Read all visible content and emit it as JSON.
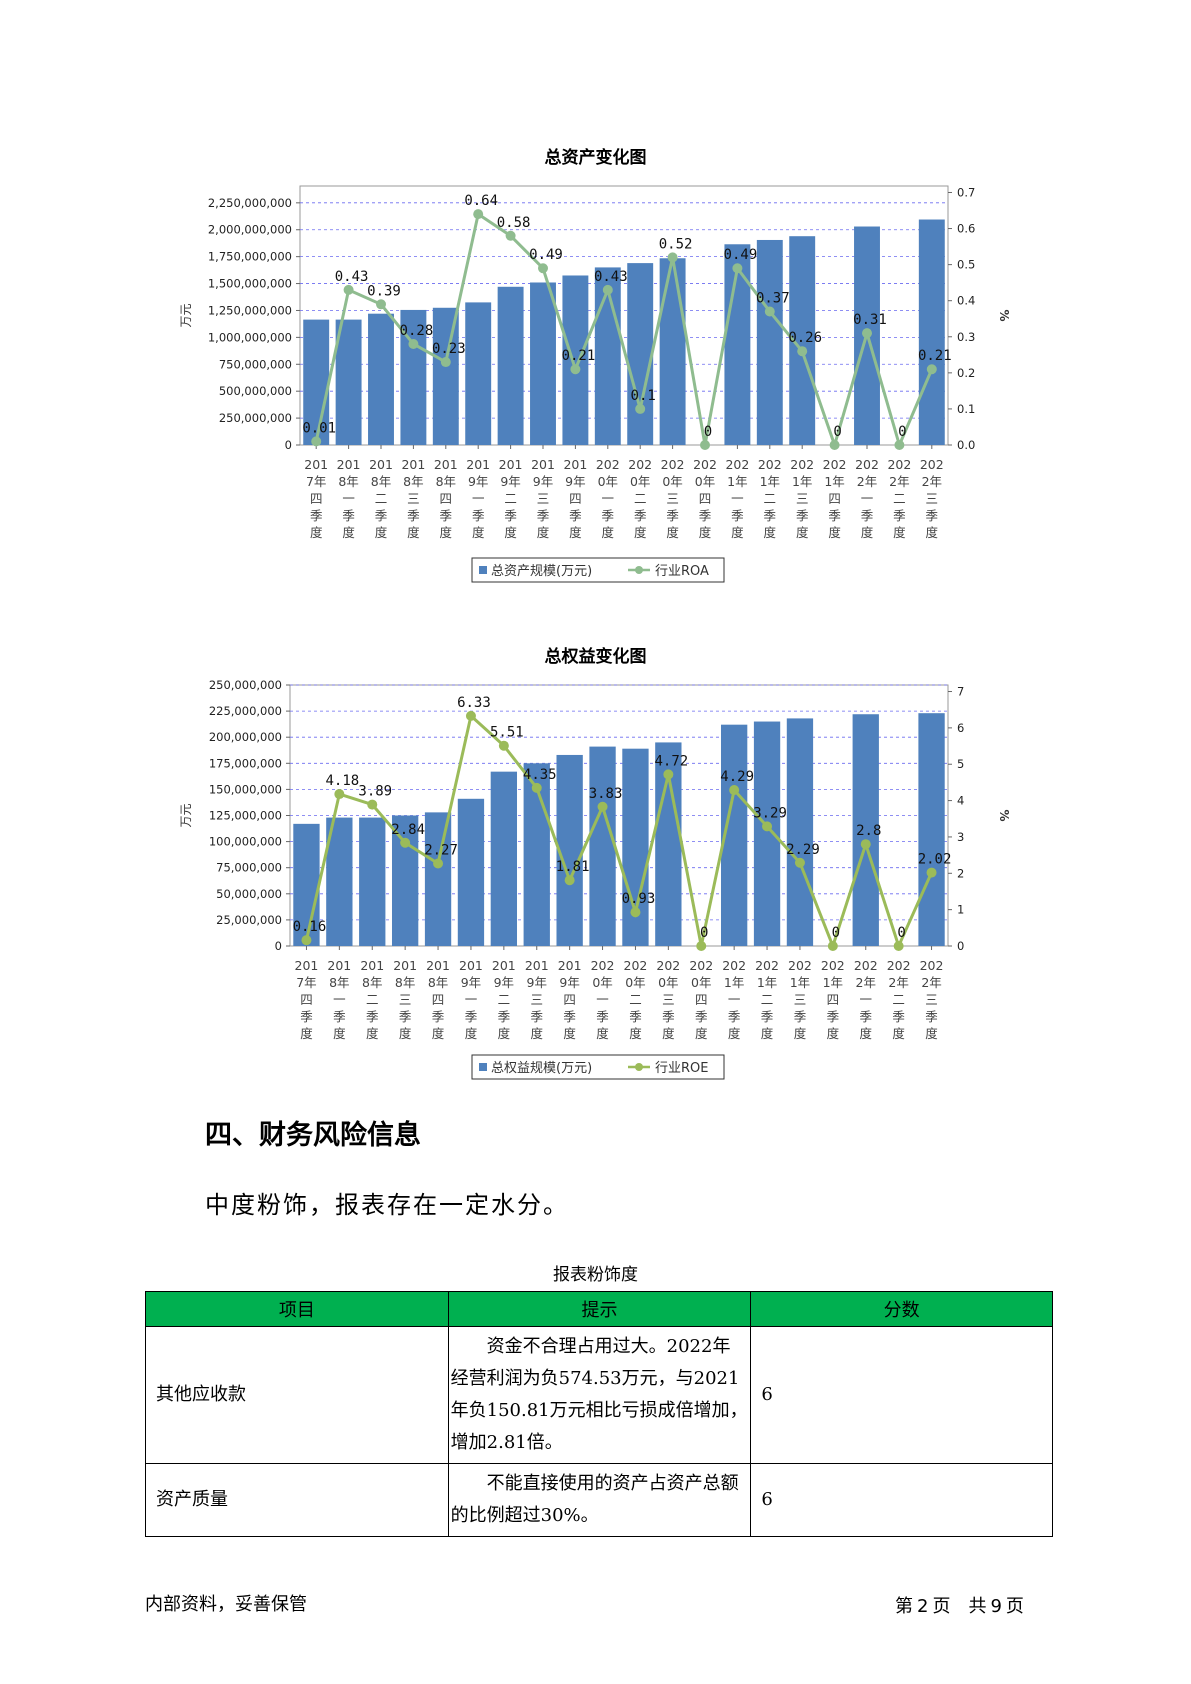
{
  "chart_data": [
    {
      "type": "bar",
      "title": "总资产变化图",
      "ylabel": "万元",
      "y2label": "%",
      "categories": [
        "2017年四季度",
        "2018年一季度",
        "2018年二季度",
        "2018年三季度",
        "2018年四季度",
        "2019年一季度",
        "2019年二季度",
        "2019年三季度",
        "2019年四季度",
        "2020年一季度",
        "2020年二季度",
        "2020年三季度",
        "2020年四季度",
        "2021年一季度",
        "2021年二季度",
        "2021年三季度",
        "2021年四季度",
        "2022年一季度",
        "2022年二季度",
        "2022年三季度"
      ],
      "category_lines": [
        [
          "201",
          "7年",
          "四",
          "季",
          "度"
        ],
        [
          "201",
          "8年",
          "一",
          "季",
          "度"
        ],
        [
          "201",
          "8年",
          "二",
          "季",
          "度"
        ],
        [
          "201",
          "8年",
          "三",
          "季",
          "度"
        ],
        [
          "201",
          "8年",
          "四",
          "季",
          "度"
        ],
        [
          "201",
          "9年",
          "一",
          "季",
          "度"
        ],
        [
          "201",
          "9年",
          "二",
          "季",
          "度"
        ],
        [
          "201",
          "9年",
          "三",
          "季",
          "度"
        ],
        [
          "201",
          "9年",
          "四",
          "季",
          "度"
        ],
        [
          "202",
          "0年",
          "一",
          "季",
          "度"
        ],
        [
          "202",
          "0年",
          "二",
          "季",
          "度"
        ],
        [
          "202",
          "0年",
          "三",
          "季",
          "度"
        ],
        [
          "202",
          "0年",
          "四",
          "季",
          "度"
        ],
        [
          "202",
          "1年",
          "一",
          "季",
          "度"
        ],
        [
          "202",
          "1年",
          "二",
          "季",
          "度"
        ],
        [
          "202",
          "1年",
          "三",
          "季",
          "度"
        ],
        [
          "202",
          "1年",
          "四",
          "季",
          "度"
        ],
        [
          "202",
          "2年",
          "一",
          "季",
          "度"
        ],
        [
          "202",
          "2年",
          "二",
          "季",
          "度"
        ],
        [
          "202",
          "2年",
          "三",
          "季",
          "度"
        ]
      ],
      "series": [
        {
          "name": "总资产规模(万元)",
          "kind": "bar",
          "axis": "left",
          "color": "#4f81bd",
          "values": [
            1165000000,
            1165000000,
            1220000000,
            1255000000,
            1275000000,
            1325000000,
            1470000000,
            1510000000,
            1575000000,
            1650000000,
            1690000000,
            1735000000,
            null,
            1865000000,
            1905000000,
            1940000000,
            null,
            2030000000,
            null,
            2095000000
          ]
        },
        {
          "name": "行业ROA",
          "kind": "line",
          "axis": "right",
          "color": "#8fbc8f",
          "values": [
            0.01,
            0.43,
            0.39,
            0.28,
            0.23,
            0.64,
            0.58,
            0.49,
            0.21,
            0.43,
            0.1,
            0.52,
            0,
            0.49,
            0.37,
            0.26,
            0,
            0.31,
            0,
            0.21
          ],
          "labels": [
            "0.01",
            "0.43",
            "0.39",
            "0.28",
            "0.23",
            "0.64",
            "0.58",
            "0.49",
            "0.21",
            "0.43",
            "0.1",
            "0.52",
            "0",
            "0.49",
            "0.37",
            "0.26",
            "0",
            "0.31",
            "0",
            "0.21"
          ]
        }
      ],
      "ylim": [
        0,
        2250000000
      ],
      "yticks": [
        "0",
        "250,000,000",
        "500,000,000",
        "750,000,000",
        "1,000,000,000",
        "1,250,000,000",
        "1,500,000,000",
        "1,750,000,000",
        "2,000,000,000",
        "2,250,000,000"
      ],
      "y2lim": [
        0,
        0.7
      ],
      "y2ticks": [
        "0.0",
        "0.1",
        "0.2",
        "0.3",
        "0.4",
        "0.5",
        "0.6",
        "0.7"
      ],
      "legend": "bottom",
      "grid": true
    },
    {
      "type": "bar",
      "title": "总权益变化图",
      "ylabel": "万元",
      "y2label": "%",
      "categories": [
        "2017年四季度",
        "2018年一季度",
        "2018年二季度",
        "2018年三季度",
        "2018年四季度",
        "2019年一季度",
        "2019年二季度",
        "2019年三季度",
        "2019年四季度",
        "2020年一季度",
        "2020年二季度",
        "2020年三季度",
        "2020年四季度",
        "2021年一季度",
        "2021年二季度",
        "2021年三季度",
        "2021年四季度",
        "2022年一季度",
        "2022年二季度",
        "2022年三季度"
      ],
      "category_lines": [
        [
          "201",
          "7年",
          "四",
          "季",
          "度"
        ],
        [
          "201",
          "8年",
          "一",
          "季",
          "度"
        ],
        [
          "201",
          "8年",
          "二",
          "季",
          "度"
        ],
        [
          "201",
          "8年",
          "三",
          "季",
          "度"
        ],
        [
          "201",
          "8年",
          "四",
          "季",
          "度"
        ],
        [
          "201",
          "9年",
          "一",
          "季",
          "度"
        ],
        [
          "201",
          "9年",
          "二",
          "季",
          "度"
        ],
        [
          "201",
          "9年",
          "三",
          "季",
          "度"
        ],
        [
          "201",
          "9年",
          "四",
          "季",
          "度"
        ],
        [
          "202",
          "0年",
          "一",
          "季",
          "度"
        ],
        [
          "202",
          "0年",
          "二",
          "季",
          "度"
        ],
        [
          "202",
          "0年",
          "三",
          "季",
          "度"
        ],
        [
          "202",
          "0年",
          "四",
          "季",
          "度"
        ],
        [
          "202",
          "1年",
          "一",
          "季",
          "度"
        ],
        [
          "202",
          "1年",
          "二",
          "季",
          "度"
        ],
        [
          "202",
          "1年",
          "三",
          "季",
          "度"
        ],
        [
          "202",
          "1年",
          "四",
          "季",
          "度"
        ],
        [
          "202",
          "2年",
          "一",
          "季",
          "度"
        ],
        [
          "202",
          "2年",
          "二",
          "季",
          "度"
        ],
        [
          "202",
          "2年",
          "三",
          "季",
          "度"
        ]
      ],
      "series": [
        {
          "name": "总权益规模(万元)",
          "kind": "bar",
          "axis": "left",
          "color": "#4f81bd",
          "values": [
            117000000,
            123000000,
            123000000,
            125000000,
            128000000,
            141000000,
            167000000,
            175000000,
            183000000,
            191000000,
            189000000,
            195000000,
            null,
            212000000,
            215000000,
            218000000,
            null,
            222000000,
            null,
            223000000
          ]
        },
        {
          "name": "行业ROE",
          "kind": "line",
          "axis": "right",
          "color": "#9bbb59",
          "values": [
            0.16,
            4.18,
            3.89,
            2.84,
            2.27,
            6.33,
            5.51,
            4.35,
            1.81,
            3.83,
            0.93,
            4.72,
            0,
            4.29,
            3.29,
            2.29,
            0,
            2.8,
            0,
            2.02
          ],
          "labels": [
            "0.16",
            "4.18",
            "3.89",
            "2.84",
            "2.27",
            "6.33",
            "5.51",
            "4.35",
            "1.81",
            "3.83",
            "0.93",
            "4.72",
            "0",
            "4.29",
            "3.29",
            "2.29",
            "0",
            "2.8",
            "0",
            "2.02"
          ]
        }
      ],
      "ylim": [
        0,
        250000000
      ],
      "yticks": [
        "0",
        "25,000,000",
        "50,000,000",
        "75,000,000",
        "100,000,000",
        "125,000,000",
        "150,000,000",
        "175,000,000",
        "200,000,000",
        "225,000,000",
        "250,000,000"
      ],
      "y2lim": [
        0,
        7
      ],
      "y2ticks": [
        "0",
        "1",
        "2",
        "3",
        "4",
        "5",
        "6",
        "7"
      ],
      "legend": "bottom",
      "grid": true
    }
  ],
  "section": {
    "heading": "四、财务风险信息",
    "text": "中度粉饰，报表存在一定水分。"
  },
  "table": {
    "caption": "报表粉饰度",
    "headers": [
      "项目",
      "提示",
      "分数"
    ],
    "rows": [
      {
        "item": "其他应收款",
        "hint": "资金不合理占用过大。2022年经营利润为负574.53万元，与2021年负150.81万元相比亏损成倍增加，增加2.81倍。",
        "score": "6"
      },
      {
        "item": "资产质量",
        "hint": "不能直接使用的资产占资产总额的比例超过30%。",
        "score": "6"
      }
    ],
    "header_color": "#00b050"
  },
  "footer": {
    "left": "内部资料，妥善保管",
    "page_prefix": "第",
    "page_num": "2",
    "page_mid": "页　共",
    "page_total": "9",
    "page_suffix": "页"
  }
}
